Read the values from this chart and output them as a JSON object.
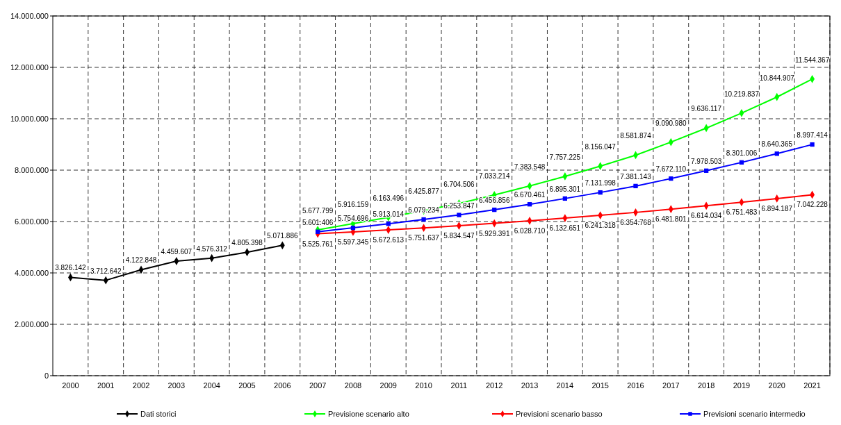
{
  "chart_data": {
    "type": "line",
    "categories": [
      "2000",
      "2001",
      "2002",
      "2003",
      "2004",
      "2005",
      "2006",
      "2007",
      "2008",
      "2009",
      "2010",
      "2011",
      "2012",
      "2013",
      "2014",
      "2015",
      "2016",
      "2017",
      "2018",
      "2019",
      "2020",
      "2021"
    ],
    "series": [
      {
        "name": "Dati storici",
        "color": "#000000",
        "marker": "diamond",
        "values": [
          3826142,
          3712642,
          4122848,
          4459607,
          4576312,
          4805398,
          5071886,
          null,
          null,
          null,
          null,
          null,
          null,
          null,
          null,
          null,
          null,
          null,
          null,
          null,
          null,
          null
        ],
        "value_labels": [
          "3.826.142",
          "3.712.642",
          "4.122.848",
          "4.459.607",
          "4.576.312",
          "4.805.398",
          "5.071.886",
          null,
          null,
          null,
          null,
          null,
          null,
          null,
          null,
          null,
          null,
          null,
          null,
          null,
          null,
          null
        ]
      },
      {
        "name": "Previsione scenario alto",
        "color": "#00ff00",
        "marker": "diamond",
        "values": [
          null,
          null,
          null,
          null,
          null,
          null,
          null,
          5677799,
          5916159,
          6163496,
          6425877,
          6704506,
          7033214,
          7383548,
          7757225,
          8156047,
          8581874,
          9090980,
          9636117,
          10219837,
          10844907,
          11544367
        ],
        "value_labels": [
          null,
          null,
          null,
          null,
          null,
          null,
          null,
          "5.677.799",
          "5.916.159",
          "6.163.496",
          "6.425.877",
          "6.704.506",
          "7.033.214",
          "7.383.548",
          "7.757.225",
          "8.156.047",
          "8.581.874",
          "9.090.980",
          "9.636.117",
          "10.219.837",
          "10.844.907",
          "11.544.367"
        ]
      },
      {
        "name": "Previsioni scenario basso",
        "color": "#ff0000",
        "marker": "diamond",
        "values": [
          null,
          null,
          null,
          null,
          null,
          null,
          null,
          5525761,
          5597345,
          5672613,
          5751637,
          5834547,
          5929391,
          6028710,
          6132651,
          6241318,
          6354768,
          6481801,
          6614034,
          6751483,
          6894187,
          7042228
        ],
        "value_labels": [
          null,
          null,
          null,
          null,
          null,
          null,
          null,
          "5.525.761",
          "5.597.345",
          "5.672.613",
          "5.751.637",
          "5.834.547",
          "5.929.391",
          "6.028.710",
          "6.132.651",
          "6.241.318",
          "6.354.768",
          "6.481.801",
          "6.614.034",
          "6.751.483",
          "6.894.187",
          "7.042.228"
        ]
      },
      {
        "name": "Previsioni scenario intermedio",
        "color": "#0000ff",
        "marker": "square",
        "values": [
          null,
          null,
          null,
          null,
          null,
          null,
          null,
          5601406,
          5754696,
          5913014,
          6079234,
          6253847,
          6456856,
          6670461,
          6895301,
          7131998,
          7381143,
          7672110,
          7978503,
          8301006,
          8640365,
          8997414
        ],
        "value_labels": [
          null,
          null,
          null,
          null,
          null,
          null,
          null,
          "5.601.406",
          "5.754.696",
          "5.913.014",
          "6.079.234",
          "6.253.847",
          "6.456.856",
          "6.670.461",
          "6.895.301",
          "7.131.998",
          "7.381.143",
          "7.672.110",
          "7.978.503",
          "8.301.006",
          "8.640.365",
          "8.997.414"
        ]
      }
    ],
    "ylim": [
      0,
      14000000
    ],
    "yticks": [
      0,
      {
        "value": 2000000,
        "label": "2.000.000"
      },
      {
        "value": 4000000,
        "label": "4.000.000"
      },
      {
        "value": 6000000,
        "label": "6.000.000"
      },
      {
        "value": 8000000,
        "label": "8.000.000"
      },
      {
        "value": 10000000,
        "label": "10.000.000"
      },
      {
        "value": 12000000,
        "label": "12.000.000"
      },
      {
        "value": 14000000,
        "label": "14.000.000"
      }
    ],
    "grid": true,
    "line_style": "solid",
    "legend": "bottom"
  }
}
